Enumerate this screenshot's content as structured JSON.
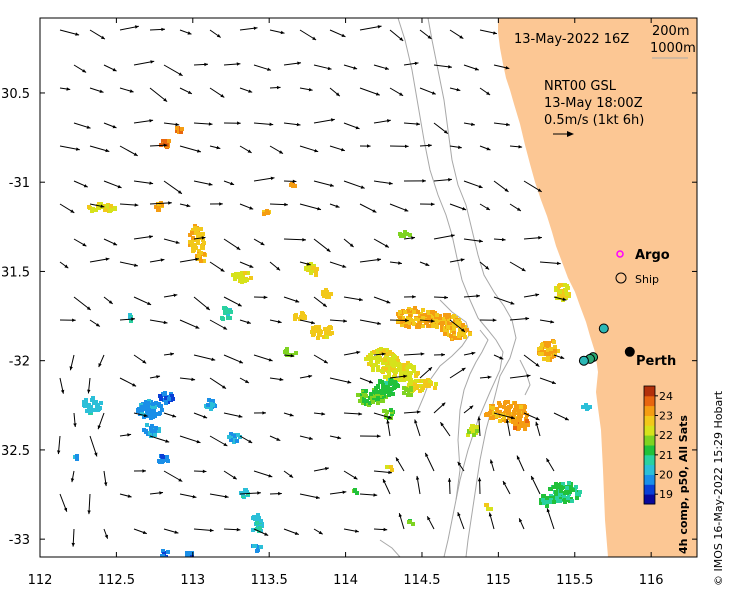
{
  "map": {
    "lon_range": [
      112,
      116.3
    ],
    "lat_range": [
      -33.1,
      -30.08
    ],
    "lon_ticks": [
      112,
      112.5,
      113,
      113.5,
      114,
      114.5,
      115,
      115.5,
      116
    ],
    "lon_tick_labels": [
      "112",
      "112.5",
      "113",
      "113.5",
      "114",
      "114.5",
      "115",
      "115.5",
      "116"
    ],
    "lat_ticks": [
      -30.5,
      -31,
      -31.5,
      -32,
      -32.5,
      -33
    ],
    "lat_tick_labels": [
      "30.5",
      "-31",
      "31.5",
      "-32",
      "32.5",
      "-33"
    ],
    "land_color": "#FCC794",
    "contour_color": "#a8a8a8"
  },
  "header": {
    "date_label": "13-May-2022 16Z",
    "depth_200": "200m",
    "depth_1000": "1000m"
  },
  "current_info": {
    "line1": "NRT00 GSL",
    "line2": "13-May 18:00Z",
    "line3": "0.5m/s (1kt 6h)"
  },
  "legend": {
    "argo": "Argo",
    "ship": "Ship",
    "argo_color": "#ff00ff"
  },
  "city": {
    "name": "Perth",
    "lon": 115.86,
    "lat": -31.95
  },
  "colorbar": {
    "ticks": [
      "24",
      "23",
      "22",
      "21",
      "20",
      "19"
    ],
    "range": [
      18.5,
      24.5
    ],
    "label": "4h comp, p50, All Sats",
    "colors": [
      "#08089c",
      "#0a3fd6",
      "#1a8fe8",
      "#2bbfd8",
      "#2ad1a0",
      "#21c13a",
      "#7ed321",
      "#d6e21b",
      "#f2c81a",
      "#f59d12",
      "#e8650f",
      "#b3300a"
    ]
  },
  "stations": [
    {
      "lon": 115.69,
      "lat": -31.82,
      "color": "#2bb7b5"
    },
    {
      "lon": 115.62,
      "lat": -31.98,
      "color": "#2aa874"
    },
    {
      "lon": 115.6,
      "lat": -31.99,
      "color": "#2aa874"
    },
    {
      "lon": 115.56,
      "lat": -32.0,
      "color": "#2bb7b5"
    },
    {
      "lon": 115.86,
      "lat": -31.95,
      "color": "#000000"
    }
  ],
  "copyright": "© IMOS 16-May-2022 15:29 Hobart"
}
